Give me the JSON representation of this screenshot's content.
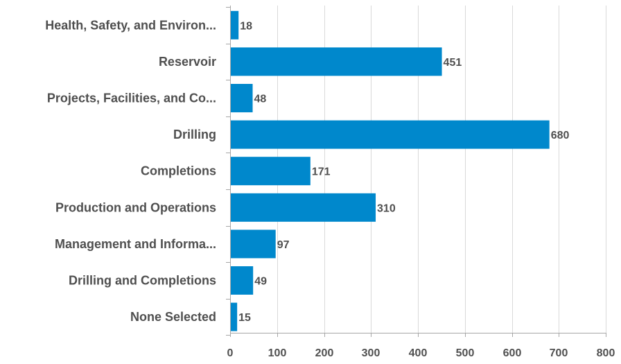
{
  "chart_data": {
    "type": "bar",
    "orientation": "horizontal",
    "title": "",
    "xlabel": "",
    "ylabel": "",
    "categories": [
      "Health, Safety, and Environ...",
      "Reservoir",
      "Projects, Facilities, and Co...",
      "Drilling",
      "Completions",
      "Production and Operations",
      "Management and Informa...",
      "Drilling and Completions",
      "None Selected"
    ],
    "values": [
      18,
      451,
      48,
      680,
      171,
      310,
      97,
      49,
      15
    ],
    "xlim": [
      0,
      800
    ],
    "xticks": [
      0,
      100,
      200,
      300,
      400,
      500,
      600,
      700,
      800
    ],
    "grid": true,
    "legend": "none",
    "bar_color": "#0088cc",
    "text_color": "#4f4f4f",
    "grid_color": "#d9d9d9",
    "axis_color": "#a6a6a6"
  }
}
